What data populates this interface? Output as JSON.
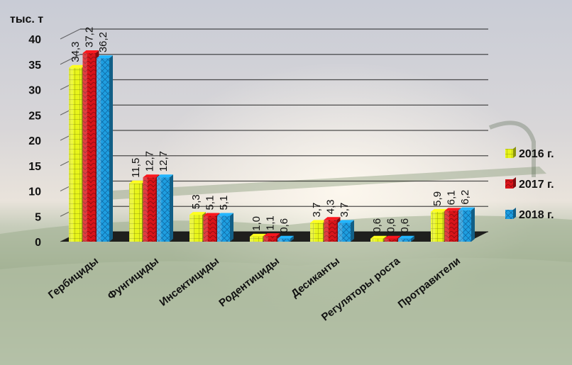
{
  "chart_data": {
    "type": "bar",
    "title": "",
    "ylabel": "тыс. т",
    "xlabel": "",
    "ylim": [
      0,
      40
    ],
    "yticks": [
      0,
      5,
      10,
      15,
      20,
      25,
      30,
      35,
      40
    ],
    "grid": true,
    "legend_position": "right",
    "categories": [
      "Гербициды",
      "Фунгициды",
      "Инсектициды",
      "Родентициды",
      "Десиканты",
      "Регуляторы роста",
      "Протравители"
    ],
    "series": [
      {
        "name": "2016 г.",
        "color": "#e8f51a",
        "values": [
          34.3,
          11.5,
          5.3,
          1.0,
          3.7,
          0.6,
          5.9
        ],
        "labels": [
          "34,3",
          "11,5",
          "5,3",
          "1,0",
          "3,7",
          "0,6",
          "5,9"
        ]
      },
      {
        "name": "2017 г.",
        "color": "#d9141a",
        "values": [
          37.2,
          12.7,
          5.1,
          1.1,
          4.3,
          0.6,
          6.1
        ],
        "labels": [
          "37,2",
          "12,7",
          "5,1",
          "1,1",
          "4,3",
          "0,6",
          "6,1"
        ]
      },
      {
        "name": "2018 г.",
        "color": "#1e9ee0",
        "values": [
          36.2,
          12.7,
          5.1,
          0.6,
          3.7,
          0.6,
          6.2
        ],
        "labels": [
          "36,2",
          "12,7",
          "5,1",
          "0,6",
          "3,7",
          "0,6",
          "6,2"
        ]
      }
    ]
  }
}
